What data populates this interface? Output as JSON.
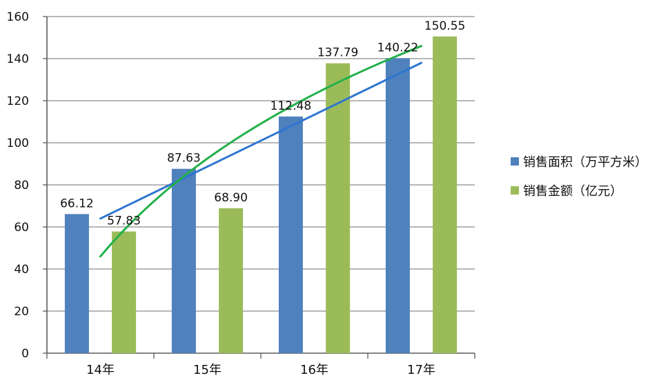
{
  "chart_data": {
    "type": "bar",
    "categories": [
      "14年",
      "15年",
      "16年",
      "17年"
    ],
    "ylim": [
      0,
      160
    ],
    "y_ticks": [
      0,
      20,
      40,
      60,
      80,
      100,
      120,
      140,
      160
    ],
    "grid": true,
    "legend_position": "right",
    "series": [
      {
        "name": "销售面积（万平方米）",
        "values": [
          66.12,
          87.63,
          112.48,
          140.22
        ],
        "value_labels": [
          "66.12",
          "87.63",
          "112.48",
          "140.22"
        ],
        "color": "#4F81BD"
      },
      {
        "name": "销售金额（亿元）",
        "values": [
          57.83,
          68.9,
          137.79,
          150.55
        ],
        "value_labels": [
          "57.83",
          "68.90",
          "137.79",
          "150.55"
        ],
        "color": "#9BBB59"
      }
    ],
    "trendlines": [
      {
        "series": "销售面积（万平方米）",
        "kind": "linear",
        "color": "#2E75D0",
        "start": [
          0.5,
          64
        ],
        "end": [
          3.5,
          138
        ]
      },
      {
        "series": "销售金额（亿元）",
        "kind": "logarithmic",
        "color": "#22B04A",
        "start": [
          0.5,
          46
        ],
        "end": [
          3.5,
          146
        ]
      }
    ]
  }
}
